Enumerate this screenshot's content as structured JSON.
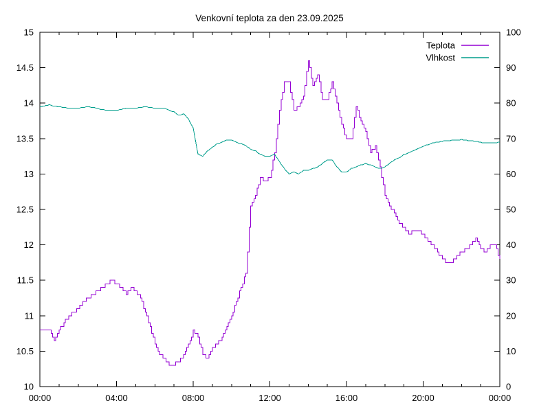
{
  "title": "Venkovní teplota za den 23.09.2025",
  "legend": {
    "position": "top-right",
    "items": [
      {
        "label": "Teplota",
        "color": "#9400d3"
      },
      {
        "label": "Vlhkost",
        "color": "#009e8c"
      }
    ]
  },
  "axes": {
    "x": {
      "tick_labels": [
        "00:00",
        "04:00",
        "08:00",
        "12:00",
        "16:00",
        "20:00",
        "00:00"
      ],
      "major_every_hours": 4,
      "minor_every_hours": 1,
      "range_hours": [
        0,
        24
      ]
    },
    "y_left": {
      "series": "Teplota",
      "min": 10,
      "max": 15,
      "step": 0.5,
      "tick_labels": [
        "10",
        "10.5",
        "11",
        "11.5",
        "12",
        "12.5",
        "13",
        "13.5",
        "14",
        "14.5",
        "15"
      ]
    },
    "y_right": {
      "series": "Vlhkost",
      "min": 0,
      "max": 100,
      "step": 10,
      "tick_labels": [
        "0",
        "10",
        "20",
        "30",
        "40",
        "50",
        "60",
        "70",
        "80",
        "90",
        "100"
      ]
    }
  },
  "chart_data": {
    "type": "line",
    "title": "Venkovní teplota za den 23.09.2025",
    "grid": false,
    "legend_position": "top-right",
    "x_unit": "time of day (HH:MM), 15-minute sampling",
    "times": [
      "00:00",
      "00:15",
      "00:30",
      "00:45",
      "01:00",
      "01:15",
      "01:30",
      "01:45",
      "02:00",
      "02:15",
      "02:30",
      "02:45",
      "03:00",
      "03:15",
      "03:30",
      "03:45",
      "04:00",
      "04:15",
      "04:30",
      "04:45",
      "05:00",
      "05:15",
      "05:30",
      "05:45",
      "06:00",
      "06:15",
      "06:30",
      "06:45",
      "07:00",
      "07:15",
      "07:30",
      "07:45",
      "08:00",
      "08:15",
      "08:30",
      "08:45",
      "09:00",
      "09:15",
      "09:30",
      "09:45",
      "10:00",
      "10:15",
      "10:30",
      "10:45",
      "11:00",
      "11:15",
      "11:30",
      "11:45",
      "12:00",
      "12:15",
      "12:30",
      "12:45",
      "13:00",
      "13:15",
      "13:30",
      "13:45",
      "14:00",
      "14:15",
      "14:30",
      "14:45",
      "15:00",
      "15:15",
      "15:30",
      "15:45",
      "16:00",
      "16:15",
      "16:30",
      "16:45",
      "17:00",
      "17:15",
      "17:30",
      "17:45",
      "18:00",
      "18:15",
      "18:30",
      "18:45",
      "19:00",
      "19:15",
      "19:30",
      "19:45",
      "20:00",
      "20:15",
      "20:30",
      "20:45",
      "21:00",
      "21:15",
      "21:30",
      "21:45",
      "22:00",
      "22:15",
      "22:30",
      "22:45",
      "23:00",
      "23:15",
      "23:30",
      "23:45",
      "24:00"
    ],
    "series": [
      {
        "name": "Teplota",
        "axis": "left",
        "unit": "°C",
        "color": "#9400d3",
        "ylim": [
          10,
          15
        ],
        "values": [
          10.8,
          10.8,
          10.8,
          10.65,
          10.8,
          10.9,
          11.0,
          11.05,
          11.1,
          11.2,
          11.25,
          11.3,
          11.35,
          11.4,
          11.45,
          11.5,
          11.45,
          11.4,
          11.3,
          11.4,
          11.35,
          11.25,
          11.05,
          10.85,
          10.6,
          10.45,
          10.4,
          10.32,
          10.32,
          10.35,
          10.45,
          10.6,
          10.78,
          10.7,
          10.45,
          10.4,
          10.55,
          10.6,
          10.7,
          10.85,
          11.0,
          11.2,
          11.4,
          11.6,
          12.55,
          12.7,
          12.95,
          12.9,
          12.95,
          13.3,
          13.9,
          14.3,
          14.3,
          13.9,
          13.95,
          14.1,
          14.6,
          14.25,
          14.4,
          14.05,
          14.05,
          14.3,
          14.0,
          13.7,
          13.5,
          13.5,
          13.95,
          13.75,
          13.6,
          13.3,
          13.4,
          13.1,
          12.7,
          12.55,
          12.45,
          12.3,
          12.25,
          12.15,
          12.2,
          12.2,
          12.15,
          12.05,
          12.0,
          11.9,
          11.8,
          11.75,
          11.75,
          11.85,
          11.9,
          11.95,
          12.0,
          12.1,
          11.95,
          11.9,
          12.0,
          12.0,
          11.8
        ]
      },
      {
        "name": "Vlhkost",
        "axis": "right",
        "unit": "%",
        "color": "#009e8c",
        "ylim": [
          0,
          100
        ],
        "values": [
          79.0,
          79.3,
          79.5,
          79.2,
          79.0,
          78.8,
          78.6,
          78.6,
          78.6,
          78.8,
          79.0,
          78.8,
          78.5,
          78.2,
          78.0,
          78.0,
          78.0,
          78.3,
          78.5,
          78.5,
          78.6,
          78.8,
          79.0,
          78.8,
          78.6,
          78.6,
          78.5,
          78.0,
          77.5,
          76.5,
          77.0,
          75.5,
          73.0,
          65.5,
          65.0,
          66.5,
          67.5,
          68.5,
          69.0,
          69.5,
          69.5,
          69.0,
          68.5,
          68.0,
          67.0,
          66.5,
          65.5,
          65.0,
          65.0,
          65.5,
          63.5,
          61.5,
          60.0,
          60.5,
          60.0,
          61.0,
          61.0,
          61.5,
          62.0,
          63.0,
          64.0,
          64.0,
          62.0,
          60.5,
          60.5,
          61.5,
          62.0,
          62.5,
          63.0,
          62.5,
          62.0,
          61.5,
          62.0,
          63.0,
          64.0,
          64.5,
          65.5,
          66.0,
          66.5,
          67.3,
          67.8,
          68.3,
          68.8,
          69.0,
          69.3,
          69.4,
          69.5,
          69.6,
          69.7,
          69.5,
          69.4,
          69.2,
          68.9,
          68.8,
          68.7,
          68.7,
          69.0
        ]
      }
    ]
  }
}
